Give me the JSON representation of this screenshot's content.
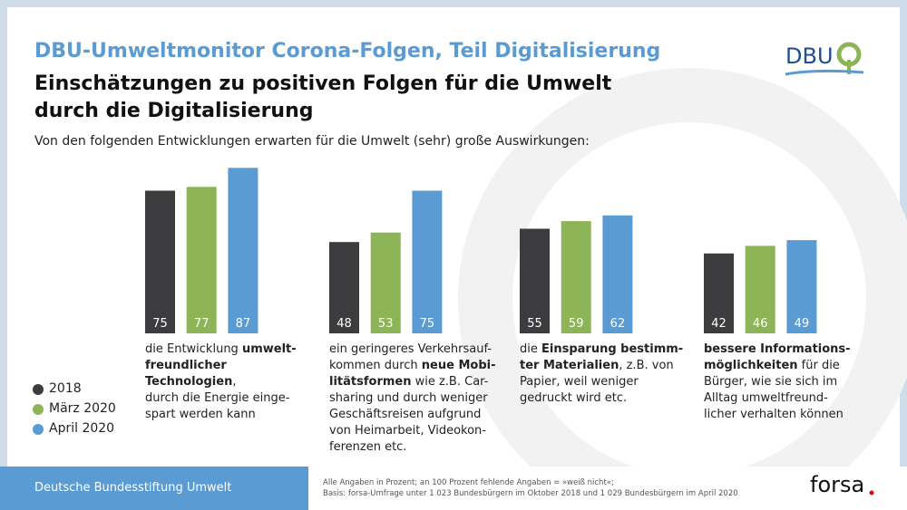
{
  "header": {
    "title": "DBU-Umweltmonitor Corona-Folgen, Teil Digitalisierung",
    "subtitle": "Einschätzungen zu positiven Folgen für die Umwelt\ndurch die Digitalisierung",
    "intro": "Von den folgenden Entwicklungen erwarten für die Umwelt (sehr) große Auswirkungen:"
  },
  "logo": "DBU",
  "chart_data": {
    "type": "bar",
    "categories": [
      [
        {
          "text": "die Entwicklung ",
          "bold": false
        },
        {
          "text": "umwelt-\nfreundlicher Technologien",
          "bold": true
        },
        {
          "text": ",\ndurch die Energie einge-\nspart werden kann",
          "bold": false
        }
      ],
      [
        {
          "text": "ein geringeres Verkehrsauf-\nkommen durch ",
          "bold": false
        },
        {
          "text": "neue Mobi-\nlitätsformen",
          "bold": true
        },
        {
          "text": " wie z.B. Car-\nsharing und durch weniger\nGeschäftsreisen aufgrund\nvon Heimarbeit, Videokon-\nferenzen etc.",
          "bold": false
        }
      ],
      [
        {
          "text": "die ",
          "bold": false
        },
        {
          "text": "Einsparung bestimm-\nter Materialien",
          "bold": true
        },
        {
          "text": ", z.B. von\nPapier, weil weniger\ngedruckt wird etc.",
          "bold": false
        }
      ],
      [
        {
          "text": "bessere Informations-\nmöglichkeiten",
          "bold": true
        },
        {
          "text": " für die\nBürger, wie sie sich im\nAlltag umweltfreund-\nlicher verhalten können",
          "bold": false
        }
      ]
    ],
    "series": [
      {
        "name": "2018",
        "color": "#3c3c3e",
        "values": [
          75,
          48,
          55,
          42
        ]
      },
      {
        "name": "März 2020",
        "color": "#8db456",
        "values": [
          77,
          53,
          59,
          46
        ]
      },
      {
        "name": "April 2020",
        "color": "#5b9bd3",
        "values": [
          87,
          75,
          62,
          49
        ]
      }
    ],
    "ylim": [
      0,
      100
    ]
  },
  "footer": {
    "organization": "Deutsche Bundesstiftung Umwelt",
    "notes": [
      "Alle Angaben in Prozent; an 100 Prozent fehlende Angaben = »weiß nicht«;",
      "Basis: forsa-Umfrage unter 1 023 Bundesbürgern im Oktober 2018 und 1 029 Bundesbürgern im April 2020"
    ],
    "brand": "forsa"
  }
}
